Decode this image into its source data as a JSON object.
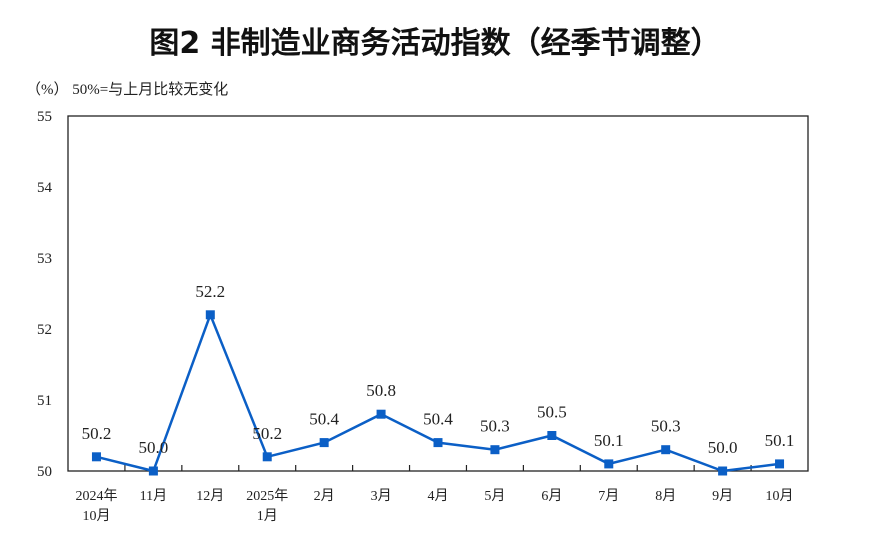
{
  "chart_data": {
    "type": "line",
    "title": "图2  非制造业商务活动指数（经季节调整）",
    "unit_note": "（%）  50%=与上月比较无变化",
    "categories": [
      "2024年\n10月",
      "11月",
      "12月",
      "2025年\n1月",
      "2月",
      "3月",
      "4月",
      "5月",
      "6月",
      "7月",
      "8月",
      "9月",
      "10月"
    ],
    "values": [
      50.2,
      50.0,
      52.2,
      50.2,
      50.4,
      50.8,
      50.4,
      50.3,
      50.5,
      50.1,
      50.3,
      50.0,
      50.1
    ],
    "data_labels": [
      "50.2",
      "50.0",
      "52.2",
      "50.2",
      "50.4",
      "50.8",
      "50.4",
      "50.3",
      "50.5",
      "50.1",
      "50.3",
      "50.0",
      "50.1"
    ],
    "ylim": [
      50,
      55
    ],
    "yticks": [
      "50",
      "51",
      "52",
      "53",
      "54",
      "55"
    ],
    "grid": false,
    "line_color": "#0b5fc6"
  }
}
